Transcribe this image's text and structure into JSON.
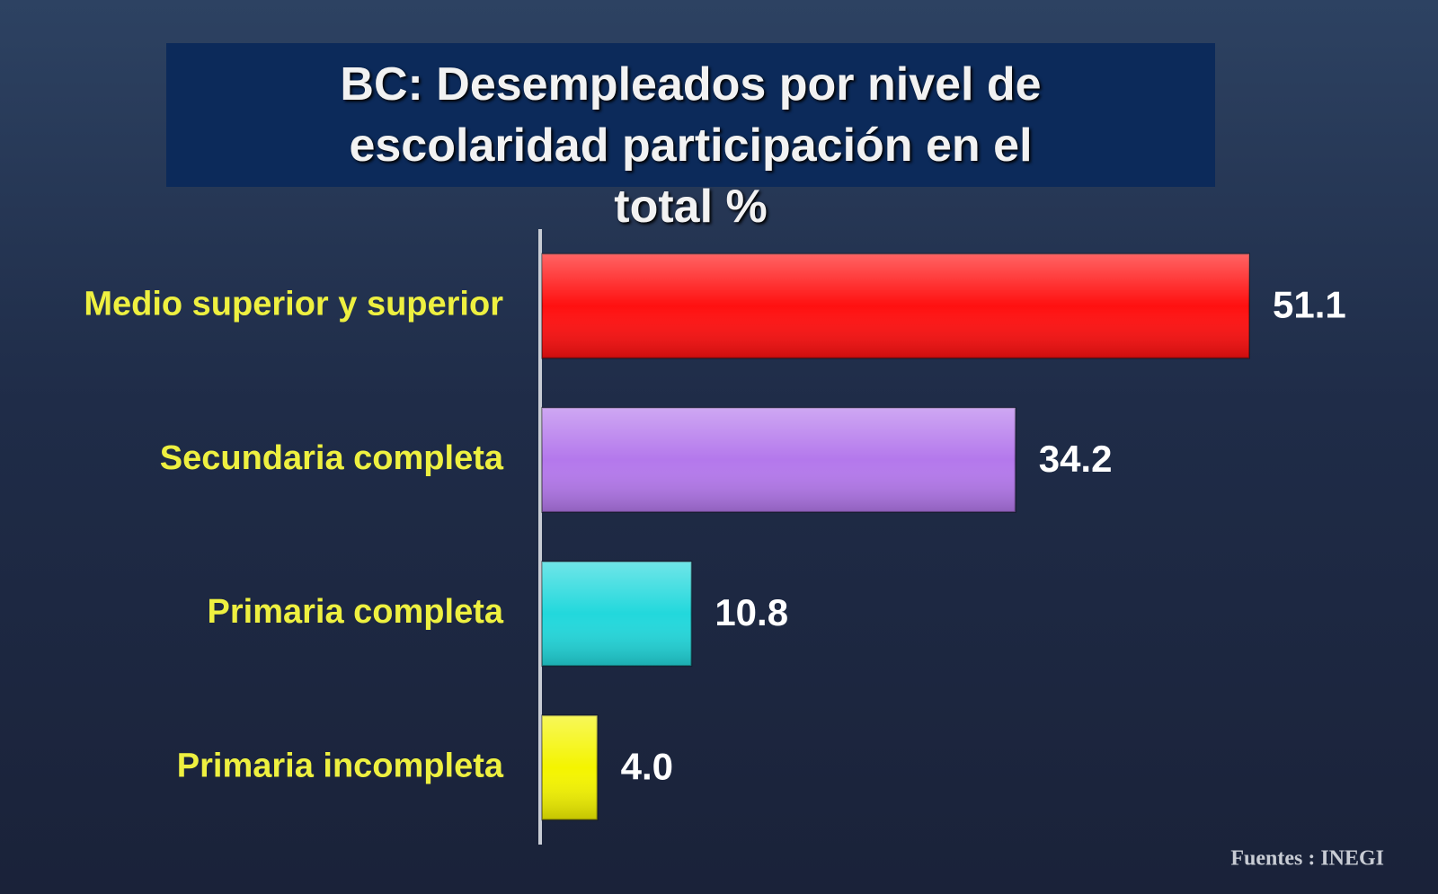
{
  "chart_data": {
    "type": "bar",
    "title": "BC: Desempleados por nivel de escolaridad participación en el total %",
    "categories": [
      "Medio superior y superior",
      "Secundaria completa",
      "Primaria completa",
      "Primaria incompleta"
    ],
    "values": [
      51.1,
      34.2,
      10.8,
      4.0
    ],
    "value_labels": [
      "51.1",
      "34.2",
      "10.8",
      "4.0"
    ],
    "colors": [
      "#ff1010",
      "#b478ec",
      "#22d8dc",
      "#f4f400"
    ],
    "source": "Fuentes :  INEGI"
  }
}
